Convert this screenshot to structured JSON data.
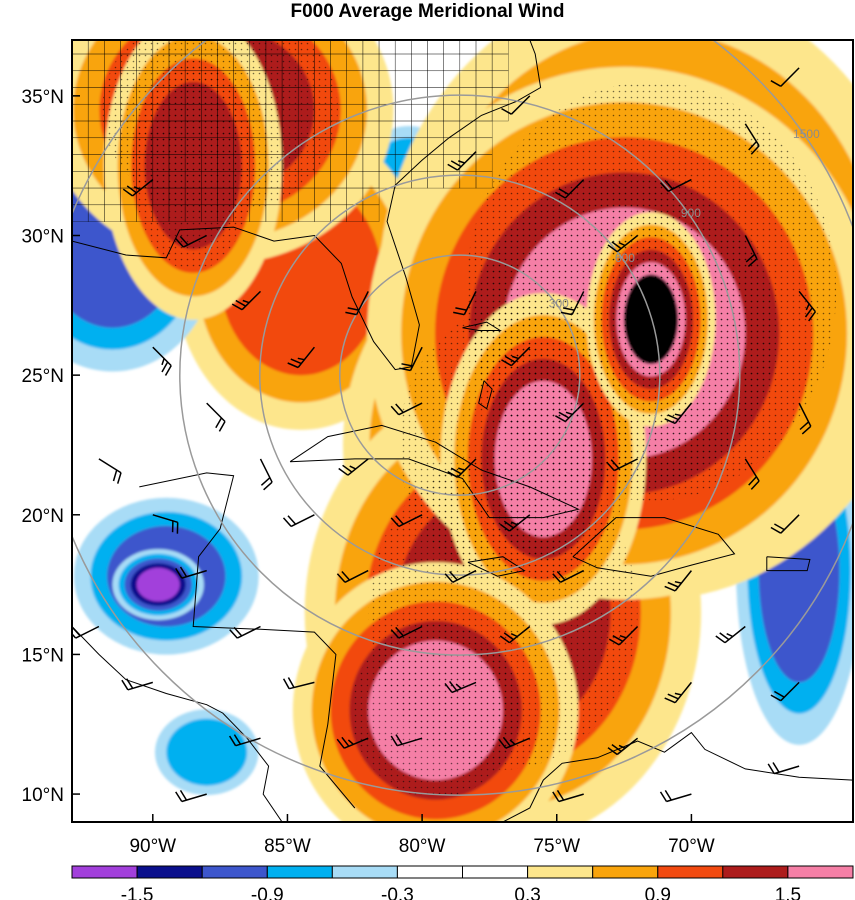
{
  "title": "F000 Average Meridional Wind",
  "map": {
    "lon_range": [
      -93,
      -64
    ],
    "lat_range": [
      9,
      37
    ],
    "lat_ticks": [
      {
        "value": 10,
        "label": "10°N"
      },
      {
        "value": 15,
        "label": "15°N"
      },
      {
        "value": 20,
        "label": "20°N"
      },
      {
        "value": 25,
        "label": "25°N"
      },
      {
        "value": 30,
        "label": "30°N"
      },
      {
        "value": 35,
        "label": "35°N"
      }
    ],
    "lon_ticks": [
      {
        "value": -90,
        "label": "90°W"
      },
      {
        "value": -85,
        "label": "85°W"
      },
      {
        "value": -80,
        "label": "80°W"
      },
      {
        "value": -75,
        "label": "75°W"
      },
      {
        "value": -70,
        "label": "70°W"
      }
    ],
    "range_ring_labels": [
      "300",
      "600",
      "900",
      "1500"
    ],
    "range_ring_center": {
      "lon": -78.6,
      "lat": 25.0
    },
    "colors": {
      "background": "#ffffff",
      "ring": "#9a9a9a",
      "coast": "#000000",
      "barb": "#000000"
    }
  },
  "colorbar": {
    "bins": [
      {
        "color": "#a23fdb"
      },
      {
        "color": "#0a0f8c"
      },
      {
        "color": "#3d56cc"
      },
      {
        "color": "#00b0f0"
      },
      {
        "color": "#a8dcf6"
      },
      {
        "color": "#ffffff"
      },
      {
        "color": "#ffffff"
      },
      {
        "color": "#fde68c"
      },
      {
        "color": "#f9a40c"
      },
      {
        "color": "#f24a10"
      },
      {
        "color": "#ad1c1c"
      },
      {
        "color": "#f57fa6"
      }
    ],
    "labels": [
      {
        "value": -1.5,
        "label": "-1.5"
      },
      {
        "value": -0.9,
        "label": "-0.9"
      },
      {
        "value": -0.3,
        "label": "-0.3"
      },
      {
        "value": 0.3,
        "label": "0.3"
      },
      {
        "value": 0.9,
        "label": "0.9"
      },
      {
        "value": 1.5,
        "label": "1.5"
      }
    ]
  },
  "field_blobs": [
    {
      "lon": -71.5,
      "lat": 28.0,
      "rx": 5.5,
      "ry": 6.0,
      "level": 4
    },
    {
      "lon": -72.5,
      "lat": 26.5,
      "rx": 4.5,
      "ry": 4.5,
      "level": 5
    },
    {
      "lon": -71.5,
      "lat": 27.0,
      "rx": 1.0,
      "ry": 1.6,
      "level": 6
    },
    {
      "lon": -76.5,
      "lat": 22.5,
      "rx": 3.5,
      "ry": 4.0,
      "level": 4
    },
    {
      "lon": -75.5,
      "lat": 22.0,
      "rx": 1.8,
      "ry": 2.8,
      "level": 5
    },
    {
      "lon": -77.0,
      "lat": 16.5,
      "rx": 4.0,
      "ry": 4.5,
      "level": 4
    },
    {
      "lon": -79.5,
      "lat": 13.0,
      "rx": 2.5,
      "ry": 2.5,
      "level": 5
    },
    {
      "lon": -84.5,
      "lat": 28.5,
      "rx": 3.0,
      "ry": 3.5,
      "level": 3
    },
    {
      "lon": -87.5,
      "lat": 34.5,
      "rx": 3.5,
      "ry": 3.0,
      "level": 4
    },
    {
      "lon": -88.5,
      "lat": 32.5,
      "rx": 1.8,
      "ry": 3.0,
      "level": 4
    },
    {
      "lon": -91.5,
      "lat": 29.5,
      "rx": 2.5,
      "ry": 2.8,
      "level": -3
    },
    {
      "lon": -89.5,
      "lat": 17.8,
      "rx": 2.2,
      "ry": 1.8,
      "level": -3
    },
    {
      "lon": -89.8,
      "lat": 17.5,
      "rx": 0.8,
      "ry": 0.6,
      "level": -5
    },
    {
      "lon": -66.0,
      "lat": 18.0,
      "rx": 1.5,
      "ry": 4.0,
      "level": -3
    },
    {
      "lon": -68.5,
      "lat": 35.0,
      "rx": 2.0,
      "ry": 1.5,
      "level": -3
    },
    {
      "lon": -80.5,
      "lat": 32.0,
      "rx": 1.5,
      "ry": 1.5,
      "level": -2
    },
    {
      "lon": -88.0,
      "lat": 11.5,
      "rx": 1.5,
      "ry": 1.2,
      "level": -2
    },
    {
      "lon": -81.5,
      "lat": 24.0,
      "rx": 1.3,
      "ry": 1.5,
      "level": -1
    }
  ],
  "wind_barbs": [
    {
      "lon": -90,
      "lat": 26,
      "u": -10,
      "v": 10
    },
    {
      "lon": -88,
      "lat": 24,
      "u": -8,
      "v": 8
    },
    {
      "lon": -86,
      "lat": 22,
      "u": -5,
      "v": 10
    },
    {
      "lon": -84,
      "lat": 20,
      "u": 10,
      "v": 5
    },
    {
      "lon": -82,
      "lat": 18,
      "u": 10,
      "v": 5
    },
    {
      "lon": -80,
      "lat": 16,
      "u": 10,
      "v": 5
    },
    {
      "lon": -78,
      "lat": 14,
      "u": 12,
      "v": 5
    },
    {
      "lon": -76,
      "lat": 12,
      "u": 12,
      "v": 5
    },
    {
      "lon": -74,
      "lat": 10,
      "u": 10,
      "v": 3
    },
    {
      "lon": -72,
      "lat": 12,
      "u": 10,
      "v": 8
    },
    {
      "lon": -70,
      "lat": 14,
      "u": 8,
      "v": 10
    },
    {
      "lon": -72,
      "lat": 16,
      "u": 10,
      "v": 10
    },
    {
      "lon": -74,
      "lat": 18,
      "u": 10,
      "v": 5
    },
    {
      "lon": -76,
      "lat": 20,
      "u": 10,
      "v": 8
    },
    {
      "lon": -78,
      "lat": 22,
      "u": 10,
      "v": 10
    },
    {
      "lon": -80,
      "lat": 24,
      "u": 10,
      "v": 5
    },
    {
      "lon": -76,
      "lat": 26,
      "u": 10,
      "v": 10
    },
    {
      "lon": -74,
      "lat": 28,
      "u": 5,
      "v": 10
    },
    {
      "lon": -72,
      "lat": 30,
      "u": 10,
      "v": 8
    },
    {
      "lon": -70,
      "lat": 32,
      "u": 10,
      "v": 5
    },
    {
      "lon": -68,
      "lat": 30,
      "u": -5,
      "v": 10
    },
    {
      "lon": -66,
      "lat": 28,
      "u": -8,
      "v": 10
    },
    {
      "lon": -66,
      "lat": 24,
      "u": -5,
      "v": 10
    },
    {
      "lon": -68,
      "lat": 22,
      "u": -5,
      "v": 8
    },
    {
      "lon": -66,
      "lat": 20,
      "u": 8,
      "v": 8
    },
    {
      "lon": -70,
      "lat": 24,
      "u": 8,
      "v": 10
    },
    {
      "lon": -72,
      "lat": 22,
      "u": 10,
      "v": 5
    },
    {
      "lon": -74,
      "lat": 24,
      "u": 10,
      "v": 10
    },
    {
      "lon": -78,
      "lat": 28,
      "u": 5,
      "v": 10
    },
    {
      "lon": -82,
      "lat": 28,
      "u": 5,
      "v": 10
    },
    {
      "lon": -84,
      "lat": 26,
      "u": 8,
      "v": 10
    },
    {
      "lon": -86,
      "lat": 28,
      "u": 10,
      "v": 10
    },
    {
      "lon": -88,
      "lat": 30,
      "u": 10,
      "v": 5
    },
    {
      "lon": -90,
      "lat": 32,
      "u": 10,
      "v": 8
    },
    {
      "lon": -92,
      "lat": 22,
      "u": -8,
      "v": 5
    },
    {
      "lon": -90,
      "lat": 20,
      "u": -10,
      "v": 3
    },
    {
      "lon": -88,
      "lat": 18,
      "u": 10,
      "v": 3
    },
    {
      "lon": -86,
      "lat": 16,
      "u": 10,
      "v": 5
    },
    {
      "lon": -84,
      "lat": 14,
      "u": 12,
      "v": 3
    },
    {
      "lon": -86,
      "lat": 12,
      "u": 10,
      "v": 3
    },
    {
      "lon": -90,
      "lat": 14,
      "u": 10,
      "v": 3
    },
    {
      "lon": -92,
      "lat": 16,
      "u": 10,
      "v": 5
    },
    {
      "lon": -82,
      "lat": 12,
      "u": 12,
      "v": 5
    },
    {
      "lon": -80,
      "lat": 20,
      "u": 10,
      "v": 5
    },
    {
      "lon": -82,
      "lat": 22,
      "u": 10,
      "v": 8
    },
    {
      "lon": -70,
      "lat": 18,
      "u": 8,
      "v": 10
    },
    {
      "lon": -68,
      "lat": 16,
      "u": 10,
      "v": 8
    },
    {
      "lon": -66,
      "lat": 14,
      "u": 8,
      "v": 8
    },
    {
      "lon": -66,
      "lat": 11,
      "u": 10,
      "v": 3
    },
    {
      "lon": -70,
      "lat": 10,
      "u": 10,
      "v": 3
    },
    {
      "lon": -74,
      "lat": 32,
      "u": 8,
      "v": 8
    },
    {
      "lon": -68,
      "lat": 34,
      "u": -5,
      "v": 8
    },
    {
      "lon": -66,
      "lat": 36,
      "u": 5,
      "v": 5
    },
    {
      "lon": -78,
      "lat": 33,
      "u": 10,
      "v": 10
    },
    {
      "lon": -76,
      "lat": 35,
      "u": 5,
      "v": 5
    },
    {
      "lon": -80,
      "lat": 26,
      "u": 5,
      "v": 10
    },
    {
      "lon": -76,
      "lat": 16,
      "u": 10,
      "v": 8
    },
    {
      "lon": -78,
      "lat": 18,
      "u": 10,
      "v": 5
    },
    {
      "lon": -80,
      "lat": 12,
      "u": 10,
      "v": 3
    },
    {
      "lon": -88,
      "lat": 10,
      "u": 10,
      "v": 3
    }
  ]
}
